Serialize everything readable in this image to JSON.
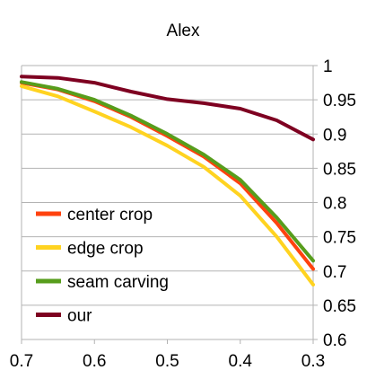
{
  "chart_data": {
    "type": "line",
    "title": "Alex",
    "xlabel": "",
    "ylabel": "",
    "xlim": [
      0.7,
      0.3
    ],
    "ylim": [
      0.6,
      1.0
    ],
    "x_ticks": [
      0.7,
      0.6,
      0.5,
      0.4,
      0.3
    ],
    "y_ticks": [
      0.6,
      0.65,
      0.7,
      0.75,
      0.8,
      0.85,
      0.9,
      0.95,
      1.0
    ],
    "x_tick_labels": [
      "0.7",
      "0.6",
      "0.5",
      "0.4",
      "0.3"
    ],
    "y_tick_labels": [
      "0.6",
      "0.65",
      "0.7",
      "0.75",
      "0.8",
      "0.85",
      "0.9",
      "0.95",
      "1"
    ],
    "grid": "horizontal",
    "y_axis_side": "right",
    "legend_placement": "bottom-left",
    "series": [
      {
        "name": "center crop",
        "color": "#ff420e",
        "x": [
          0.7,
          0.65,
          0.6,
          0.55,
          0.5,
          0.45,
          0.4,
          0.35,
          0.3
        ],
        "y": [
          0.975,
          0.965,
          0.948,
          0.925,
          0.897,
          0.867,
          0.828,
          0.77,
          0.703
        ]
      },
      {
        "name": "edge crop",
        "color": "#ffd320",
        "x": [
          0.7,
          0.65,
          0.6,
          0.55,
          0.5,
          0.45,
          0.4,
          0.35,
          0.3
        ],
        "y": [
          0.97,
          0.955,
          0.933,
          0.91,
          0.883,
          0.852,
          0.81,
          0.75,
          0.68
        ]
      },
      {
        "name": "seam carving",
        "color": "#579d1c",
        "x": [
          0.7,
          0.65,
          0.6,
          0.55,
          0.5,
          0.45,
          0.4,
          0.35,
          0.3
        ],
        "y": [
          0.976,
          0.966,
          0.95,
          0.927,
          0.9,
          0.87,
          0.833,
          0.778,
          0.715
        ]
      },
      {
        "name": "our",
        "color": "#7e0021",
        "x": [
          0.7,
          0.65,
          0.6,
          0.55,
          0.5,
          0.45,
          0.4,
          0.35,
          0.3
        ],
        "y": [
          0.984,
          0.982,
          0.975,
          0.962,
          0.951,
          0.945,
          0.937,
          0.92,
          0.892
        ]
      }
    ]
  }
}
